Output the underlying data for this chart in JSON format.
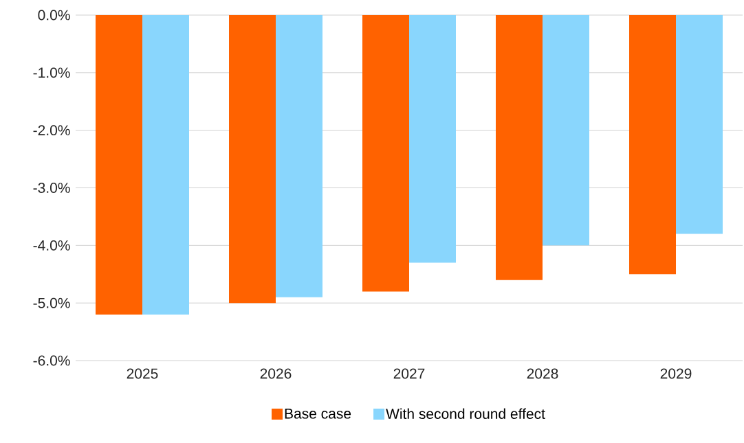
{
  "chart_data": {
    "type": "bar",
    "categories": [
      "2025",
      "2026",
      "2027",
      "2028",
      "2029"
    ],
    "series": [
      {
        "name": "Base case",
        "color": "#ff6200",
        "values": [
          -5.2,
          -5.0,
          -4.8,
          -4.6,
          -4.5
        ]
      },
      {
        "name": "With second round effect",
        "color": "#89d6fd",
        "values": [
          -5.2,
          -4.9,
          -4.3,
          -4.0,
          -3.8
        ]
      }
    ],
    "ylim": [
      -6,
      0
    ],
    "yticks": [
      {
        "value": 0,
        "label": "0.0%"
      },
      {
        "value": -1,
        "label": "-1.0%"
      },
      {
        "value": -2,
        "label": "-2.0%"
      },
      {
        "value": -3,
        "label": "-3.0%"
      },
      {
        "value": -4,
        "label": "-4.0%"
      },
      {
        "value": -5,
        "label": "-5.0%"
      },
      {
        "value": -6,
        "label": "-6.0%"
      }
    ],
    "grid": "y",
    "legend": "bottom"
  }
}
